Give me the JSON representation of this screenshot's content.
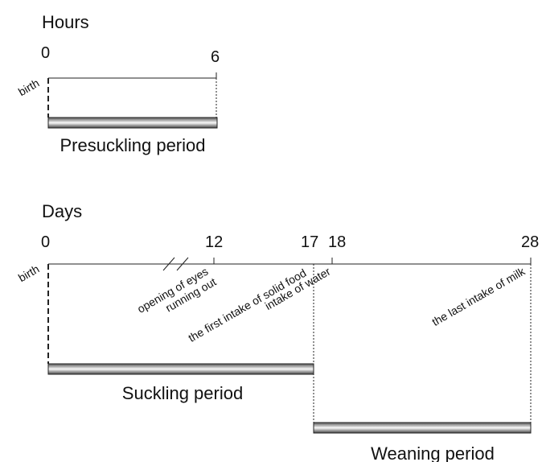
{
  "hours": {
    "title": "Hours",
    "ticks": [
      "0",
      "6"
    ],
    "event": "birth",
    "period": "Presuckling period"
  },
  "days": {
    "title": "Days",
    "ticks": [
      "0",
      "12",
      "17",
      "18",
      "28"
    ],
    "events": [
      "birth",
      "opening of eyes",
      "running out",
      "the first intake of solid food",
      "intake of water",
      "the last intake of milk"
    ],
    "periods": [
      "Suckling period",
      "Weaning period"
    ]
  }
}
